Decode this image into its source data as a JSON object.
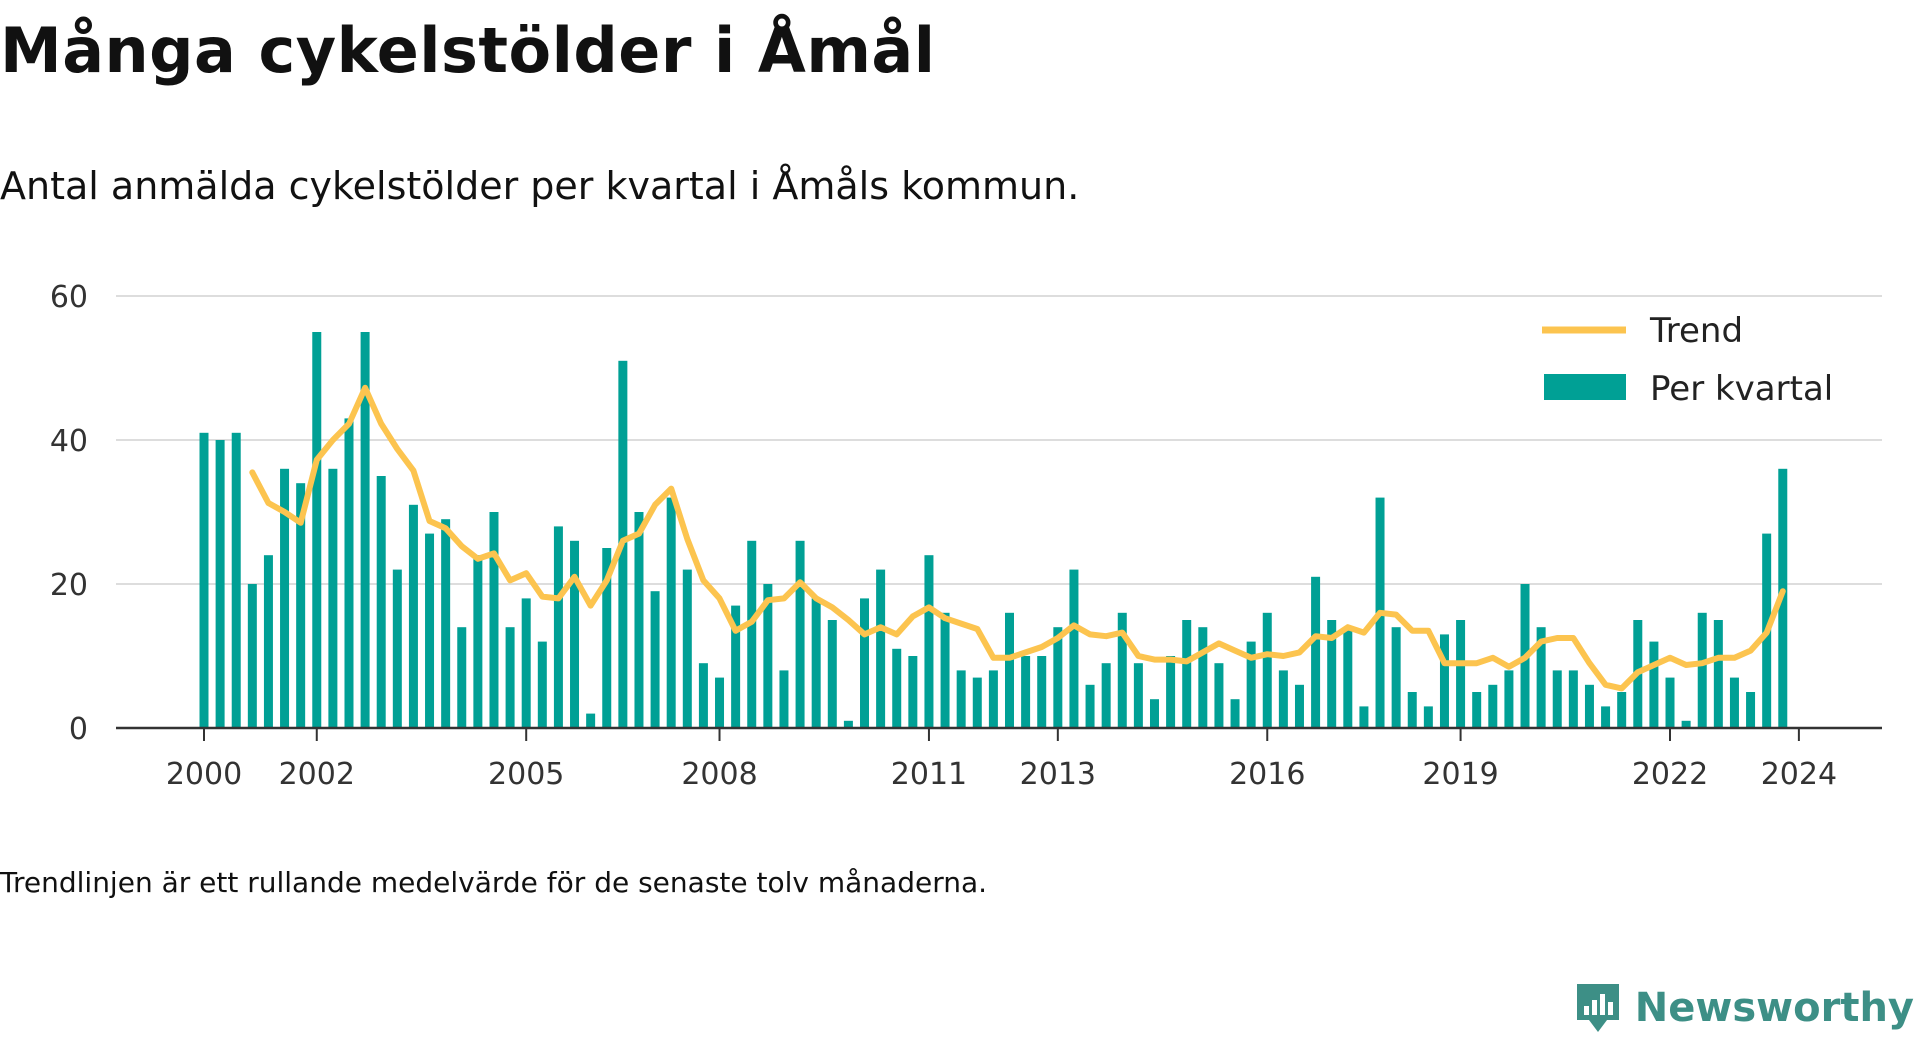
{
  "title": "Många cykelstölder i Åmål",
  "subtitle": "Antal anmälda cykelstölder per kvartal i Åmåls kommun.",
  "footnote": "Trendlinjen är ett rullande medelvärde för de senaste tolv månaderna.",
  "brand": {
    "name": "Newsworthy",
    "icon": "bar-chart-logo-icon"
  },
  "colors": {
    "bars": "#00a095",
    "trend": "#fcc44f",
    "grid": "#dddddd",
    "axis": "#333333",
    "brand": "#3d8f86"
  },
  "chart_data": {
    "type": "bar",
    "ylim": [
      0,
      60
    ],
    "yticks": [
      0,
      20,
      40,
      60
    ],
    "xticks": [
      "2000",
      "2002",
      "2005",
      "2008",
      "2011",
      "2013",
      "2016",
      "2019",
      "2022",
      "2024"
    ],
    "legend_position": "top-right",
    "grid": true,
    "series": [
      {
        "name": "Per kvartal",
        "type": "bar",
        "values": [
          41,
          40,
          41,
          20,
          24,
          36,
          34,
          55,
          36,
          43,
          55,
          35,
          22,
          31,
          27,
          29,
          14,
          24,
          30,
          14,
          18,
          12,
          28,
          26,
          2,
          25,
          51,
          30,
          19,
          32,
          22,
          9,
          7,
          17,
          26,
          20,
          8,
          26,
          18,
          15,
          1,
          18,
          22,
          11,
          10,
          24,
          16,
          8,
          7,
          8,
          16,
          10,
          10,
          14,
          22,
          6,
          9,
          16,
          9,
          4,
          10,
          15,
          14,
          9,
          4,
          12,
          16,
          8,
          6,
          21,
          15,
          14,
          3,
          32,
          14,
          5,
          3,
          13,
          15,
          5,
          6,
          8,
          20,
          14,
          8,
          8,
          6,
          3,
          5,
          15,
          12,
          7,
          1,
          16,
          15,
          7,
          5,
          27,
          36
        ]
      },
      {
        "name": "Trend",
        "type": "line",
        "start_index": 3,
        "values": [
          35.5,
          31.25,
          30,
          28.5,
          37.25,
          40,
          42.25,
          47.25,
          42.25,
          38.75,
          35.75,
          28.75,
          27.75,
          25.25,
          23.5,
          24.25,
          20.5,
          21.5,
          18.25,
          18,
          21,
          17,
          20.5,
          26,
          27,
          31,
          33.25,
          26.25,
          20.5,
          18,
          13.5,
          14.75,
          17.75,
          18,
          20.25,
          18,
          16.75,
          15,
          13,
          14,
          13,
          15.5,
          16.75,
          15.25,
          14.5,
          13.75,
          9.75,
          9.75,
          10.5,
          11.25,
          12.5,
          14.25,
          13,
          12.75,
          13.25,
          10,
          9.5,
          9.5,
          9.25,
          10.5,
          11.75,
          10.75,
          9.75,
          10.25,
          10,
          10.5,
          12.75,
          12.5,
          14,
          13.25,
          16,
          15.75,
          13.5,
          13.5,
          9,
          9,
          9,
          9.75,
          8.5,
          9.75,
          12,
          12.5,
          12.5,
          9,
          6,
          5.5,
          7.75,
          8.75,
          9.75,
          8.75,
          9,
          9.75,
          9.75,
          10.75,
          13.25,
          19
        ]
      }
    ]
  }
}
